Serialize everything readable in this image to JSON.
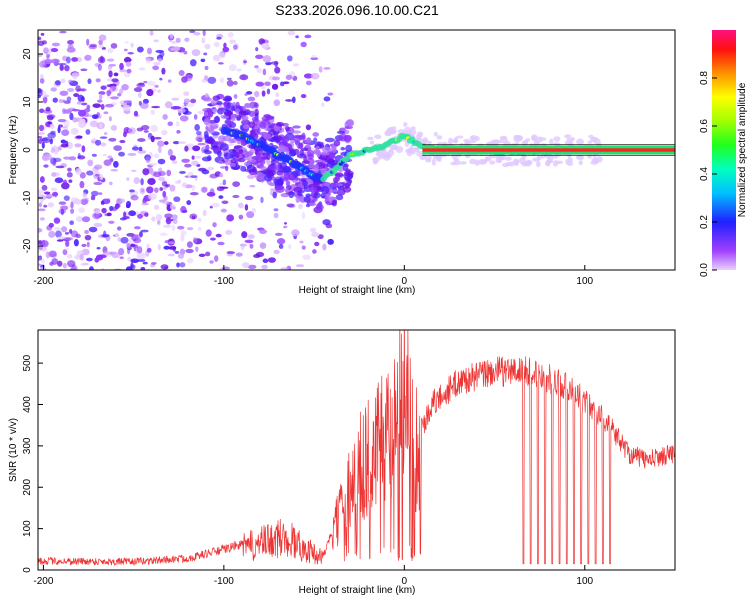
{
  "title": "S233.2026.096.10.00.C21",
  "chart_data": [
    {
      "type": "heatmap",
      "xlabel": "Height of straight line (km)",
      "ylabel": "Frequency (Hz)",
      "xlim": [
        -203,
        150
      ],
      "ylim": [
        -25,
        25
      ],
      "xticks": [
        -200,
        -100,
        0,
        100
      ],
      "xtick_labels": [
        "-200",
        "-100",
        "0",
        "100"
      ],
      "yticks": [
        -20,
        -10,
        0,
        10,
        20
      ],
      "ytick_labels": [
        "-20",
        "-10",
        "0",
        "10",
        "20"
      ],
      "colorbar": {
        "label": "Normalized spectral amplitude",
        "range": [
          0,
          1
        ],
        "ticks": [
          0.0,
          0.2,
          0.4,
          0.6,
          0.8
        ],
        "tick_labels": [
          "0.0",
          "0.2",
          "0.4",
          "0.6",
          "0.8"
        ]
      },
      "ridge": [
        {
          "x": -100,
          "y": 4
        },
        {
          "x": -90,
          "y": 3
        },
        {
          "x": -80,
          "y": 1
        },
        {
          "x": -70,
          "y": -1
        },
        {
          "x": -60,
          "y": -3
        },
        {
          "x": -52,
          "y": -5
        },
        {
          "x": -45,
          "y": -6
        },
        {
          "x": -38,
          "y": -4
        },
        {
          "x": -30,
          "y": -1
        },
        {
          "x": -20,
          "y": 0
        },
        {
          "x": -10,
          "y": 1
        },
        {
          "x": 0,
          "y": 3
        },
        {
          "x": 10,
          "y": 0.5
        },
        {
          "x": 30,
          "y": 0
        },
        {
          "x": 60,
          "y": -0.3
        },
        {
          "x": 90,
          "y": 0
        },
        {
          "x": 110,
          "y": 0
        },
        {
          "x": 150,
          "y": 0
        }
      ],
      "noise_region_x": [
        -203,
        -40
      ]
    },
    {
      "type": "line",
      "xlabel": "Height of straight line (km)",
      "ylabel": "SNR (10 * v/v)",
      "xlim": [
        -203,
        150
      ],
      "ylim": [
        0,
        580
      ],
      "xticks": [
        -200,
        -100,
        0,
        100
      ],
      "xtick_labels": [
        "-200",
        "-100",
        "0",
        "100"
      ],
      "yticks": [
        0,
        100,
        200,
        300,
        400,
        500
      ],
      "ytick_labels": [
        "0",
        "100",
        "200",
        "300",
        "400",
        "500"
      ],
      "color": "#ee3333",
      "series_envelope": [
        {
          "x": -203,
          "y": 22
        },
        {
          "x": -150,
          "y": 20
        },
        {
          "x": -120,
          "y": 28
        },
        {
          "x": -100,
          "y": 50
        },
        {
          "x": -80,
          "y": 75
        },
        {
          "x": -65,
          "y": 95
        },
        {
          "x": -55,
          "y": 60
        },
        {
          "x": -45,
          "y": 35
        },
        {
          "x": -35,
          "y": 140
        },
        {
          "x": -28,
          "y": 230
        },
        {
          "x": -20,
          "y": 270
        },
        {
          "x": -10,
          "y": 320
        },
        {
          "x": -5,
          "y": 390
        },
        {
          "x": 0,
          "y": 520
        },
        {
          "x": 5,
          "y": 280
        },
        {
          "x": 15,
          "y": 400
        },
        {
          "x": 30,
          "y": 455
        },
        {
          "x": 50,
          "y": 480
        },
        {
          "x": 70,
          "y": 480
        },
        {
          "x": 90,
          "y": 445
        },
        {
          "x": 110,
          "y": 370
        },
        {
          "x": 125,
          "y": 280
        },
        {
          "x": 135,
          "y": 265
        },
        {
          "x": 150,
          "y": 285
        }
      ],
      "dropouts_x": [
        66,
        70,
        74,
        78,
        82,
        86,
        90,
        94,
        98,
        102,
        106,
        110,
        114
      ],
      "dropout_value": 15
    }
  ]
}
